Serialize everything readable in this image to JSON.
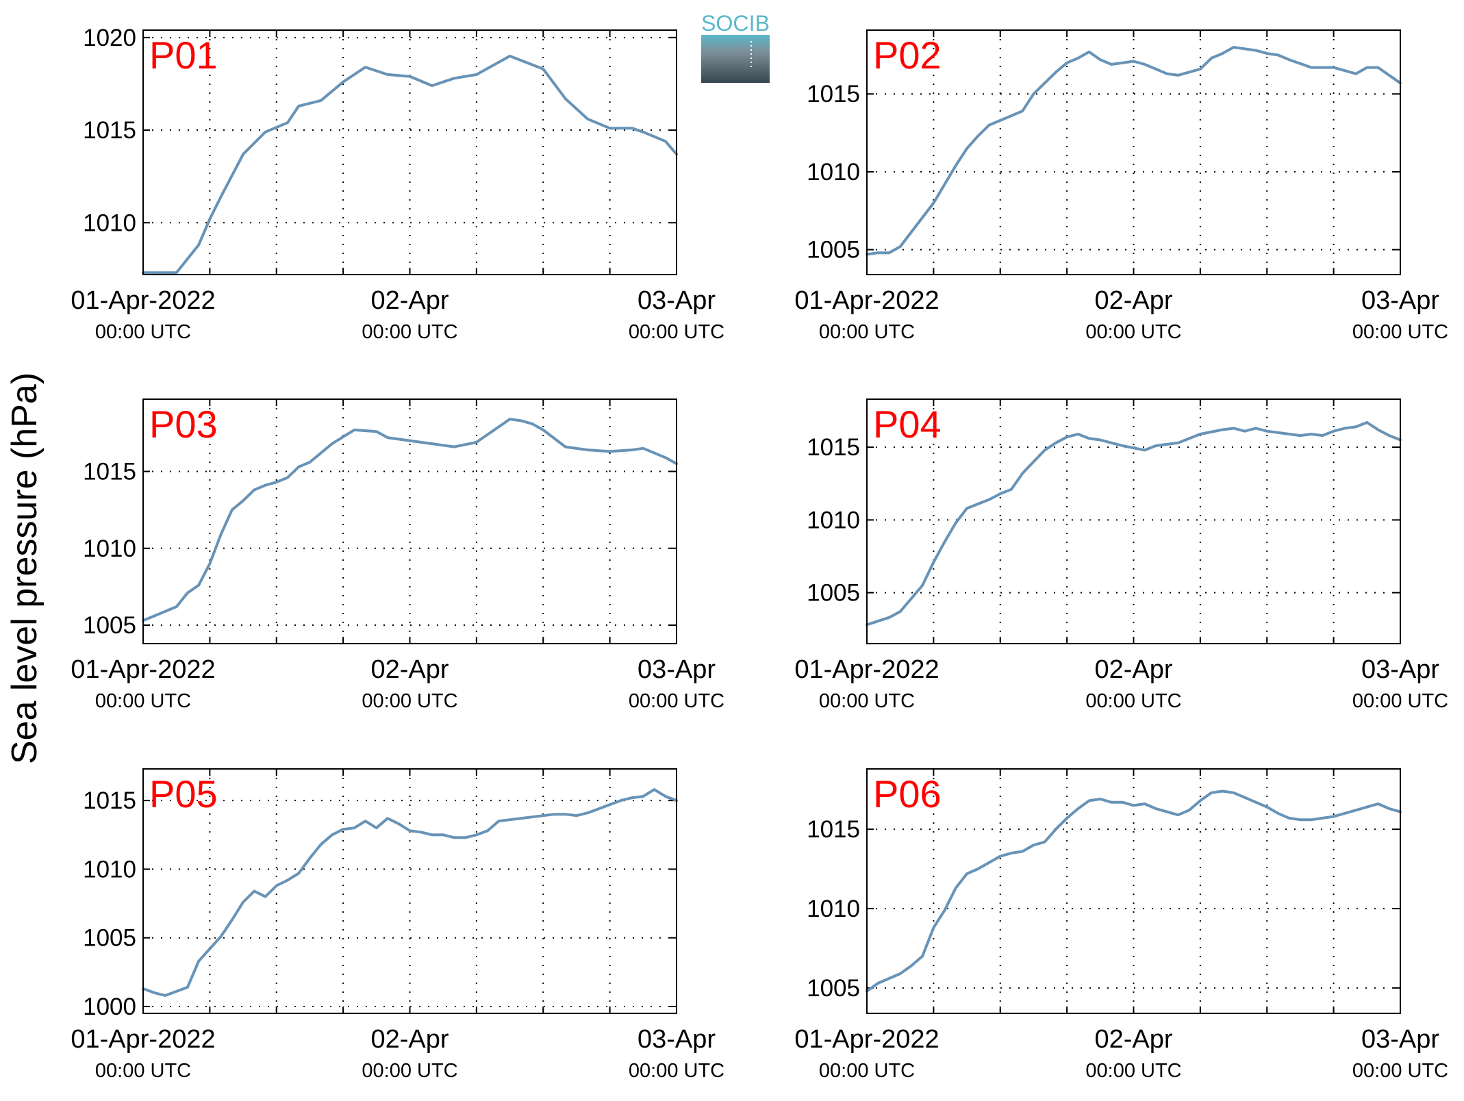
{
  "figure": {
    "ylabel": "Sea level pressure (hPa)",
    "logo_text": "SOCIB"
  },
  "colors": {
    "line": "#6893b6",
    "panel_label": "#ff0000",
    "logo_top": "#5bb8cb",
    "logo_bottom": "#37474f"
  },
  "chart_data": [
    {
      "type": "line",
      "panel": "P01",
      "grid": true,
      "xlim": [
        "2022-04-01T00:00",
        "2022-04-03T00:00"
      ],
      "ylim": [
        1007.2,
        1020.4
      ],
      "yticks": [
        "1010",
        "1015",
        "1020"
      ],
      "xticks": [
        {
          "date": "01-Apr-2022",
          "time": "00:00 UTC"
        },
        {
          "date": "02-Apr",
          "time": "00:00 UTC"
        },
        {
          "date": "03-Apr",
          "time": "00:00 UTC"
        }
      ],
      "series": [
        {
          "hours": [
            0,
            1,
            2,
            3,
            5,
            6,
            7,
            9,
            11,
            13,
            14,
            16,
            18,
            20,
            22,
            24,
            26,
            28,
            30,
            33,
            36,
            38,
            40,
            42,
            44,
            45,
            47,
            48
          ],
          "values": [
            1007.3,
            1007.3,
            1007.3,
            1007.3,
            1008.8,
            1010.2,
            1011.4,
            1013.7,
            1014.9,
            1015.4,
            1016.3,
            1016.6,
            1017.6,
            1018.4,
            1018.0,
            1017.9,
            1017.4,
            1017.8,
            1018.0,
            1019.0,
            1018.3,
            1016.7,
            1015.6,
            1015.1,
            1015.1,
            1014.9,
            1014.4,
            1013.7
          ]
        }
      ]
    },
    {
      "type": "line",
      "panel": "P02",
      "grid": true,
      "xlim": [
        "2022-04-01T00:00",
        "2022-04-03T00:00"
      ],
      "ylim": [
        1003.4,
        1019.1
      ],
      "yticks": [
        "1005",
        "1010",
        "1015"
      ],
      "xticks": [
        {
          "date": "01-Apr-2022",
          "time": "00:00 UTC"
        },
        {
          "date": "02-Apr",
          "time": "00:00 UTC"
        },
        {
          "date": "03-Apr",
          "time": "00:00 UTC"
        }
      ],
      "series": [
        {
          "hours": [
            0,
            1,
            2,
            3,
            6,
            8,
            9,
            10,
            11,
            12,
            14,
            15,
            17,
            18,
            19,
            20,
            21,
            22,
            24,
            25,
            26,
            27,
            28,
            30,
            31,
            32,
            33,
            34,
            35,
            36,
            37,
            38,
            40,
            42,
            44,
            45,
            46,
            48
          ],
          "values": [
            1004.7,
            1004.8,
            1004.8,
            1005.2,
            1008.0,
            1010.4,
            1011.5,
            1012.3,
            1013.0,
            1013.3,
            1013.9,
            1015.0,
            1016.4,
            1017.0,
            1017.3,
            1017.7,
            1017.2,
            1016.9,
            1017.1,
            1016.9,
            1016.6,
            1016.3,
            1016.2,
            1016.6,
            1017.3,
            1017.6,
            1018.0,
            1017.9,
            1017.8,
            1017.6,
            1017.5,
            1017.2,
            1016.7,
            1016.7,
            1016.3,
            1016.7,
            1016.7,
            1015.7
          ]
        }
      ]
    },
    {
      "type": "line",
      "panel": "P03",
      "grid": true,
      "xlim": [
        "2022-04-01T00:00",
        "2022-04-03T00:00"
      ],
      "ylim": [
        1003.8,
        1019.7
      ],
      "yticks": [
        "1005",
        "1010",
        "1015"
      ],
      "xticks": [
        {
          "date": "01-Apr-2022",
          "time": "00:00 UTC"
        },
        {
          "date": "02-Apr",
          "time": "00:00 UTC"
        },
        {
          "date": "03-Apr",
          "time": "00:00 UTC"
        }
      ],
      "series": [
        {
          "hours": [
            0,
            1,
            2,
            3,
            4,
            5,
            6,
            7,
            8,
            9,
            10,
            11,
            12,
            13,
            14,
            15,
            16,
            17,
            19,
            21,
            22,
            24,
            26,
            28,
            30,
            31,
            33,
            34,
            35,
            36,
            38,
            40,
            42,
            44,
            45,
            47,
            48
          ],
          "values": [
            1005.3,
            1005.6,
            1005.9,
            1006.2,
            1007.1,
            1007.6,
            1009.0,
            1010.9,
            1012.5,
            1013.1,
            1013.8,
            1014.1,
            1014.3,
            1014.6,
            1015.3,
            1015.6,
            1016.2,
            1016.8,
            1017.7,
            1017.6,
            1017.2,
            1017.0,
            1016.8,
            1016.6,
            1016.9,
            1017.4,
            1018.4,
            1018.3,
            1018.1,
            1017.7,
            1016.6,
            1016.4,
            1016.3,
            1016.4,
            1016.5,
            1015.9,
            1015.5
          ]
        }
      ]
    },
    {
      "type": "line",
      "panel": "P04",
      "grid": true,
      "xlim": [
        "2022-04-01T00:00",
        "2022-04-03T00:00"
      ],
      "ylim": [
        1001.5,
        1018.3
      ],
      "yticks": [
        "1005",
        "1010",
        "1015"
      ],
      "xticks": [
        {
          "date": "01-Apr-2022",
          "time": "00:00 UTC"
        },
        {
          "date": "02-Apr",
          "time": "00:00 UTC"
        },
        {
          "date": "03-Apr",
          "time": "00:00 UTC"
        }
      ],
      "series": [
        {
          "hours": [
            0,
            2,
            3,
            5,
            6,
            7,
            8,
            9,
            10,
            11,
            12,
            13,
            14,
            15,
            16,
            17,
            18,
            19,
            20,
            21,
            22,
            23,
            25,
            26,
            27,
            28,
            30,
            32,
            33,
            34,
            35,
            36,
            38,
            39,
            40,
            41,
            42,
            43,
            44,
            45,
            46,
            47,
            48
          ],
          "values": [
            1002.8,
            1003.3,
            1003.7,
            1005.5,
            1007.1,
            1008.5,
            1009.8,
            1010.8,
            1011.1,
            1011.4,
            1011.8,
            1012.1,
            1013.2,
            1014.0,
            1014.8,
            1015.3,
            1015.7,
            1015.9,
            1015.6,
            1015.5,
            1015.3,
            1015.1,
            1014.8,
            1015.1,
            1015.2,
            1015.3,
            1015.9,
            1016.2,
            1016.3,
            1016.1,
            1016.3,
            1016.1,
            1015.9,
            1015.8,
            1015.9,
            1015.8,
            1016.1,
            1016.3,
            1016.4,
            1016.7,
            1016.2,
            1015.8,
            1015.5
          ]
        }
      ]
    },
    {
      "type": "line",
      "panel": "P05",
      "grid": true,
      "xlim": [
        "2022-04-01T00:00",
        "2022-04-03T00:00"
      ],
      "ylim": [
        999.5,
        1017.3
      ],
      "yticks": [
        "1000",
        "1005",
        "1010",
        "1015"
      ],
      "xticks": [
        {
          "date": "01-Apr-2022",
          "time": "00:00 UTC"
        },
        {
          "date": "02-Apr",
          "time": "00:00 UTC"
        },
        {
          "date": "03-Apr",
          "time": "00:00 UTC"
        }
      ],
      "series": [
        {
          "hours": [
            0,
            1,
            2,
            3,
            4,
            5,
            6,
            7,
            8,
            9,
            10,
            11,
            12,
            13,
            14,
            15,
            16,
            17,
            18,
            19,
            20,
            21,
            22,
            23,
            24,
            25,
            26,
            27,
            28,
            29,
            30,
            31,
            32,
            33,
            34,
            35,
            36,
            37,
            38,
            39,
            40,
            41,
            42,
            43,
            44,
            45,
            46,
            47,
            48
          ],
          "values": [
            1001.3,
            1001.0,
            1000.8,
            1001.1,
            1001.4,
            1003.3,
            1004.2,
            1005.1,
            1006.3,
            1007.6,
            1008.4,
            1008.0,
            1008.8,
            1009.2,
            1009.7,
            1010.8,
            1011.8,
            1012.5,
            1012.9,
            1013.0,
            1013.5,
            1013.0,
            1013.7,
            1013.3,
            1012.8,
            1012.7,
            1012.5,
            1012.5,
            1012.3,
            1012.3,
            1012.5,
            1012.8,
            1013.5,
            1013.6,
            1013.7,
            1013.8,
            1013.9,
            1014.0,
            1014.0,
            1013.9,
            1014.1,
            1014.4,
            1014.7,
            1015.0,
            1015.2,
            1015.3,
            1015.8,
            1015.3,
            1015.0
          ]
        }
      ]
    },
    {
      "type": "line",
      "panel": "P06",
      "grid": true,
      "xlim": [
        "2022-04-01T00:00",
        "2022-04-03T00:00"
      ],
      "ylim": [
        1003.4,
        1018.8
      ],
      "yticks": [
        "1005",
        "1010",
        "1015"
      ],
      "xticks": [
        {
          "date": "01-Apr-2022",
          "time": "00:00 UTC"
        },
        {
          "date": "02-Apr",
          "time": "00:00 UTC"
        },
        {
          "date": "03-Apr",
          "time": "00:00 UTC"
        }
      ],
      "series": [
        {
          "hours": [
            0,
            1,
            2,
            3,
            4,
            5,
            6,
            7,
            8,
            9,
            10,
            11,
            12,
            13,
            14,
            15,
            16,
            17,
            18,
            19,
            20,
            21,
            22,
            23,
            24,
            25,
            26,
            27,
            28,
            29,
            30,
            31,
            32,
            33,
            34,
            35,
            36,
            37,
            38,
            39,
            40,
            41,
            42,
            43,
            44,
            45,
            46,
            47,
            48
          ],
          "values": [
            1004.8,
            1005.3,
            1005.6,
            1005.9,
            1006.4,
            1007.0,
            1008.8,
            1009.9,
            1011.3,
            1012.2,
            1012.5,
            1012.9,
            1013.3,
            1013.5,
            1013.6,
            1014.0,
            1014.2,
            1015.0,
            1015.7,
            1016.3,
            1016.8,
            1016.9,
            1016.7,
            1016.7,
            1016.5,
            1016.6,
            1016.3,
            1016.1,
            1015.9,
            1016.2,
            1016.8,
            1017.3,
            1017.4,
            1017.3,
            1017.0,
            1016.7,
            1016.4,
            1016.0,
            1015.7,
            1015.6,
            1015.6,
            1015.7,
            1015.8,
            1016.0,
            1016.2,
            1016.4,
            1016.6,
            1016.3,
            1016.1
          ]
        }
      ]
    }
  ]
}
